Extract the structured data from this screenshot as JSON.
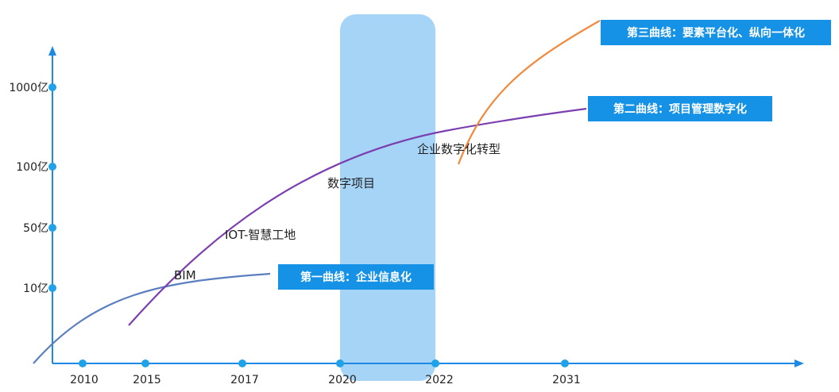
{
  "colors": {
    "axis": "#1e88e5",
    "tick_dot": "#1fa2e8",
    "highlight_band": "#a6d4f7",
    "tag_bg": "#1592e6",
    "curve1": "#5a7fbf",
    "curve2": "#7b3fb0",
    "curve3": "#f08a3c"
  },
  "chart_data": {
    "type": "line",
    "title": "",
    "xlabel": "",
    "ylabel": "",
    "x_ticks": [
      "2010",
      "2015",
      "2017",
      "2020",
      "2022",
      "2031"
    ],
    "y_ticks": [
      "10亿",
      "50亿",
      "100亿",
      "1000亿"
    ],
    "highlight_band": [
      "2020",
      "2022"
    ],
    "annotations": [
      {
        "label": "BIM"
      },
      {
        "label": "IOT-智慧工地"
      },
      {
        "label": "数字项目"
      },
      {
        "label": "企业数字化转型"
      }
    ],
    "series": [
      {
        "name": "第一曲线：企业信息化",
        "color_key": "curve1"
      },
      {
        "name": "第二曲线：项目管理数字化",
        "color_key": "curve2"
      },
      {
        "name": "第三曲线：要素平台化、纵向一体化",
        "color_key": "curve3"
      }
    ]
  }
}
